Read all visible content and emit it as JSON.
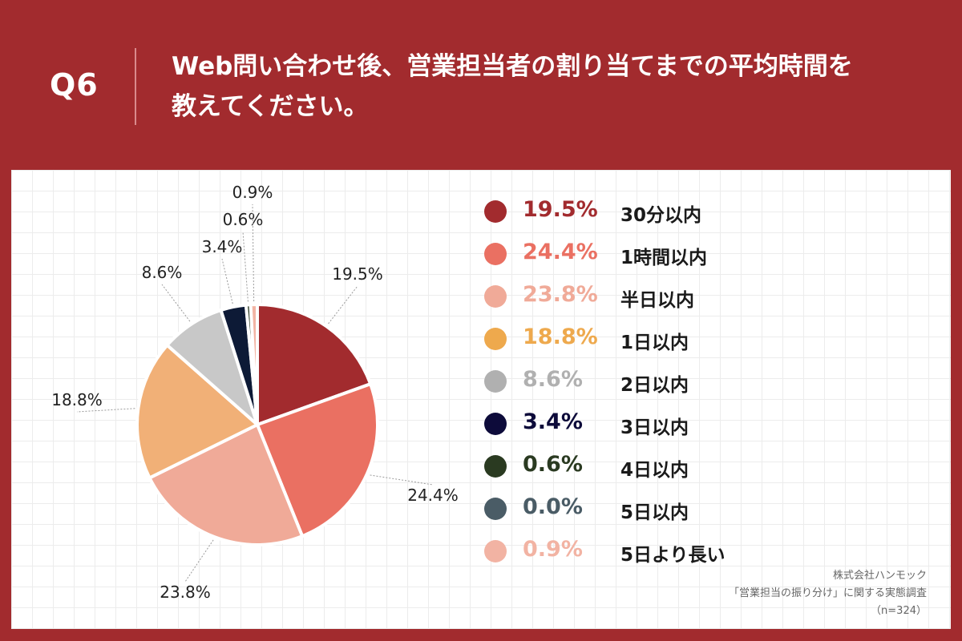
{
  "header": {
    "question_number": "Q6",
    "title_line1": "Web問い合わせ後、営業担当者の割り当てまでの平均時間を",
    "title_line2": "教えてください。"
  },
  "colors": {
    "background": "#a22b2e",
    "panel": "#ffffff"
  },
  "chart_data": {
    "type": "pie",
    "title": "Web問い合わせ後、営業担当者の割り当てまでの平均時間を教えてください。",
    "categories": [
      "30分以内",
      "1時間以内",
      "半日以内",
      "1日以内",
      "2日以内",
      "3日以内",
      "4日以内",
      "5日以内",
      "5日より長い"
    ],
    "values": [
      19.5,
      24.4,
      23.8,
      18.8,
      8.6,
      3.4,
      0.6,
      0.0,
      0.9
    ],
    "labels": [
      "19.5%",
      "24.4%",
      "23.8%",
      "18.8%",
      "8.6%",
      "3.4%",
      "0.6%",
      "0.0%",
      "0.9%"
    ],
    "pie_colors": [
      "#a22b2e",
      "#ea7062",
      "#f0aa98",
      "#f1b077",
      "#c8c8c8",
      "#0d1a36",
      "#2a3a21",
      "#4a5c66",
      "#f2b3a3"
    ],
    "legend_colors": [
      "#a22b2e",
      "#ea7062",
      "#f0aa98",
      "#eea94d",
      "#b0b0b0",
      "#0d0b3a",
      "#2a3a21",
      "#4a5c66",
      "#f2b3a3"
    ],
    "legend_placement": "right"
  },
  "footer": {
    "company": "株式会社ハンモック",
    "survey": "「営業担当の振り分け」に関する実態調査",
    "sample": "（n=324）"
  }
}
